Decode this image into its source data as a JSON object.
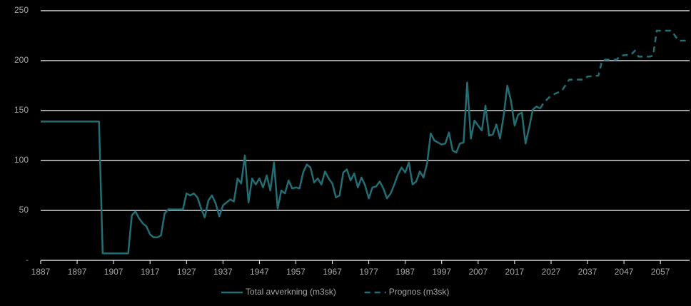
{
  "chart_data": {
    "type": "line",
    "xlim": [
      1887,
      2065
    ],
    "xticks": [
      1887,
      1897,
      1907,
      1917,
      1927,
      1937,
      1947,
      1957,
      1967,
      1977,
      1987,
      1997,
      2007,
      2017,
      2027,
      2037,
      2047,
      2057
    ],
    "ylim": [
      0,
      250
    ],
    "yticks": [
      {
        "value": 0,
        "label": "-"
      },
      50,
      100,
      150,
      200,
      250
    ],
    "grid": true,
    "legend": "bottom",
    "series": [
      {
        "name": "Total avverkning (m3sk)",
        "color": "#236e75",
        "style": "solid",
        "x": [
          1887,
          1903,
          1904,
          1911,
          1912,
          1913,
          1914,
          1915,
          1916,
          1917,
          1918,
          1919,
          1920,
          1921,
          1922,
          1923,
          1924,
          1925,
          1926,
          1927,
          1928,
          1929,
          1930,
          1931,
          1932,
          1933,
          1934,
          1935,
          1936,
          1937,
          1938,
          1939,
          1940,
          1941,
          1942,
          1943,
          1944,
          1945,
          1946,
          1947,
          1948,
          1949,
          1950,
          1951,
          1952,
          1953,
          1954,
          1955,
          1956,
          1957,
          1958,
          1959,
          1960,
          1961,
          1962,
          1963,
          1964,
          1965,
          1966,
          1967,
          1968,
          1969,
          1970,
          1971,
          1972,
          1973,
          1974,
          1975,
          1976,
          1977,
          1978,
          1979,
          1980,
          1981,
          1982,
          1983,
          1984,
          1985,
          1986,
          1987,
          1988,
          1989,
          1990,
          1991,
          1992,
          1993,
          1994,
          1995,
          1996,
          1997,
          1998,
          1999,
          2000,
          2001,
          2002,
          2003,
          2004,
          2005,
          2006,
          2007,
          2008,
          2009,
          2010,
          2011,
          2012,
          2013,
          2014,
          2015,
          2016,
          2017,
          2018,
          2019,
          2020,
          2021,
          2022,
          2023,
          2024
        ],
        "values": [
          139,
          139,
          7,
          7,
          45,
          49,
          42,
          37,
          34,
          26,
          23,
          23,
          25,
          47,
          51,
          51,
          51,
          51,
          51,
          67,
          65,
          67,
          63,
          52,
          43,
          60,
          65,
          57,
          44,
          55,
          58,
          61,
          59,
          82,
          77,
          105,
          58,
          82,
          76,
          82,
          73,
          85,
          70,
          98,
          52,
          70,
          67,
          80,
          72,
          73,
          72,
          88,
          96,
          93,
          78,
          82,
          76,
          89,
          82,
          77,
          63,
          65,
          88,
          91,
          80,
          87,
          73,
          83,
          75,
          62,
          73,
          74,
          79,
          72,
          62,
          67,
          76,
          86,
          93,
          88,
          98,
          76,
          79,
          89,
          83,
          97,
          127,
          120,
          118,
          116,
          117,
          128,
          110,
          108,
          117,
          118,
          178,
          122,
          140,
          135,
          130,
          155,
          125,
          126,
          136,
          122,
          145,
          175,
          160,
          135,
          146,
          148,
          117,
          133,
          151,
          154,
          152
        ]
      },
      {
        "name": "Prognos (m3sk)",
        "color": "#236e75",
        "style": "dashed",
        "x": [
          2024,
          2025,
          2027,
          2030,
          2032,
          2036,
          2037,
          2040,
          2041,
          2042,
          2045,
          2046,
          2049,
          2050,
          2051,
          2054,
          2055,
          2056,
          2060,
          2062,
          2065
        ],
        "values": [
          152,
          158,
          165,
          170,
          181,
          181,
          184,
          185,
          200,
          201,
          201,
          205,
          206,
          210,
          204,
          204,
          205,
          230,
          230,
          220,
          220
        ]
      }
    ]
  }
}
